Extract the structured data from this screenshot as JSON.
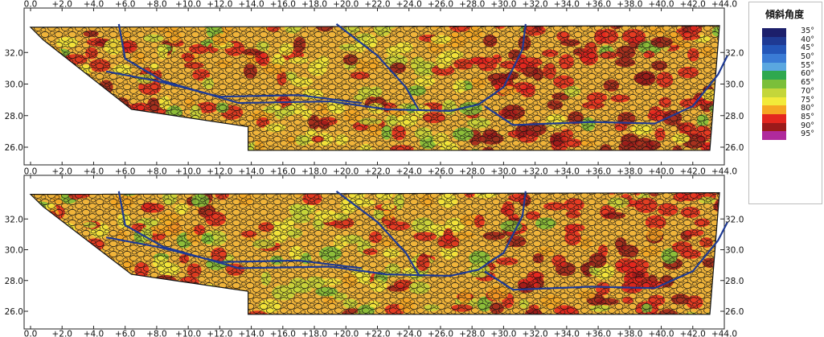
{
  "figure": {
    "panels": [
      {
        "id": "upper"
      },
      {
        "id": "lower"
      }
    ],
    "x_ticks": [
      "0.0",
      "+2.0",
      "+4.0",
      "+6.0",
      "+8.0",
      "+10.0",
      "+12.0",
      "+14.0",
      "+16.0",
      "+18.0",
      "+20.0",
      "+22.0",
      "+24.0",
      "+26.0",
      "+28.0",
      "+30.0",
      "+32.0",
      "+34.0",
      "+36.0",
      "+38.0",
      "+40.0",
      "+42.0",
      "+44.0"
    ],
    "y_ticks": [
      "32.0",
      "30.0",
      "28.0",
      "26.0"
    ]
  },
  "legend": {
    "title": "傾斜角度",
    "items": [
      {
        "label": "35°",
        "color": "#1c1f6b"
      },
      {
        "label": "40°",
        "color": "#1f3a93"
      },
      {
        "label": "45°",
        "color": "#2456b8"
      },
      {
        "label": "50°",
        "color": "#3a7bd5"
      },
      {
        "label": "55°",
        "color": "#5aa7e0"
      },
      {
        "label": "60°",
        "color": "#2fa84f"
      },
      {
        "label": "65°",
        "color": "#7bbf3a"
      },
      {
        "label": "70°",
        "color": "#c4d63a"
      },
      {
        "label": "75°",
        "color": "#f2ea3a"
      },
      {
        "label": "80°",
        "color": "#f5a623"
      },
      {
        "label": "85°",
        "color": "#e4261f"
      },
      {
        "label": "90°",
        "color": "#9b1a1a"
      },
      {
        "label": "95°",
        "color": "#b02a9c"
      }
    ]
  }
}
